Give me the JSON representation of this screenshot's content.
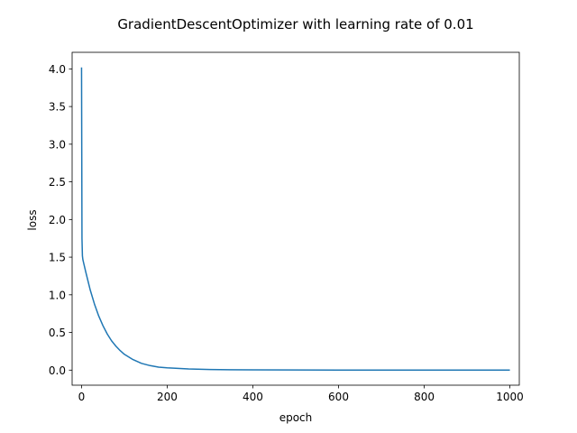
{
  "chart_data": {
    "type": "line",
    "title": "GradientDescentOptimizer with learning rate of 0.01",
    "xlabel": "epoch",
    "ylabel": "loss",
    "xlim": [
      -22,
      1022
    ],
    "ylim": [
      -0.2,
      4.22
    ],
    "x_ticks": [
      0,
      200,
      400,
      600,
      800,
      1000
    ],
    "x_tick_labels": [
      "0",
      "200",
      "400",
      "600",
      "800",
      "1000"
    ],
    "y_ticks": [
      0.0,
      0.5,
      1.0,
      1.5,
      2.0,
      2.5,
      3.0,
      3.5,
      4.0
    ],
    "y_tick_labels": [
      "0.0",
      "0.5",
      "1.0",
      "1.5",
      "2.0",
      "2.5",
      "3.0",
      "3.5",
      "4.0"
    ],
    "grid": false,
    "color": "#1f77b4",
    "series": [
      {
        "x": [
          0,
          1,
          2,
          3,
          5,
          10,
          20,
          30,
          40,
          50,
          60,
          70,
          80,
          90,
          100,
          120,
          140,
          160,
          180,
          200,
          250,
          300,
          400,
          500,
          600,
          700,
          800,
          900,
          1000
        ],
        "values": [
          4.02,
          1.75,
          1.52,
          1.47,
          1.42,
          1.3,
          1.07,
          0.88,
          0.72,
          0.59,
          0.48,
          0.39,
          0.32,
          0.26,
          0.21,
          0.14,
          0.09,
          0.06,
          0.04,
          0.03,
          0.015,
          0.008,
          0.003,
          0.002,
          0.001,
          0.001,
          0.001,
          0.001,
          0.001
        ]
      }
    ]
  }
}
